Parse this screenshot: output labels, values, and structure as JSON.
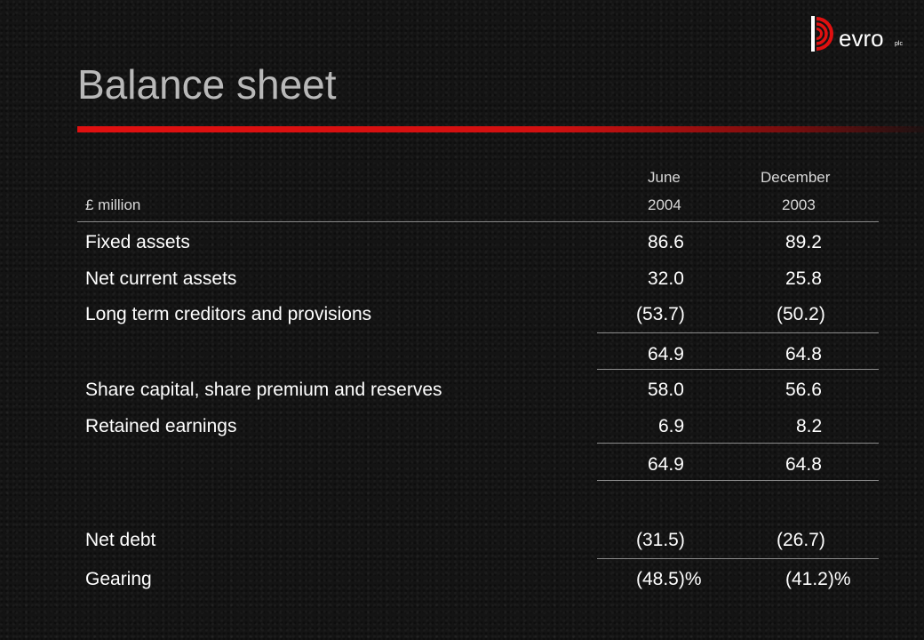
{
  "brand": {
    "name": "evro",
    "suffix": "plc",
    "accent": "#e01010"
  },
  "title": "Balance sheet",
  "header": {
    "unit": "£ million",
    "col1_line1": "June",
    "col1_line2": "2004",
    "col2_line1": "December",
    "col2_line2": "2003"
  },
  "rows": [
    {
      "label": "Fixed assets",
      "v1": "86.6",
      "v2": "89.2"
    },
    {
      "label": "Net current assets",
      "v1": "32.0",
      "v2": "25.8"
    },
    {
      "label": "Long term creditors and provisions",
      "v1": "(53.7)",
      "v2": "(50.2)"
    },
    {
      "label": "",
      "v1": "64.9",
      "v2": "64.8"
    },
    {
      "label": "Share capital, share premium and reserves",
      "v1": "58.0",
      "v2": "56.6"
    },
    {
      "label": "Retained earnings",
      "v1": "6.9",
      "v2": "8.2"
    },
    {
      "label": "",
      "v1": "64.9",
      "v2": "64.8"
    },
    {
      "label": "Net debt",
      "v1": "(31.5)",
      "v2": "(26.7)"
    },
    {
      "label": "Gearing",
      "v1": "(48.5)%",
      "v2": "(41.2)%"
    }
  ]
}
